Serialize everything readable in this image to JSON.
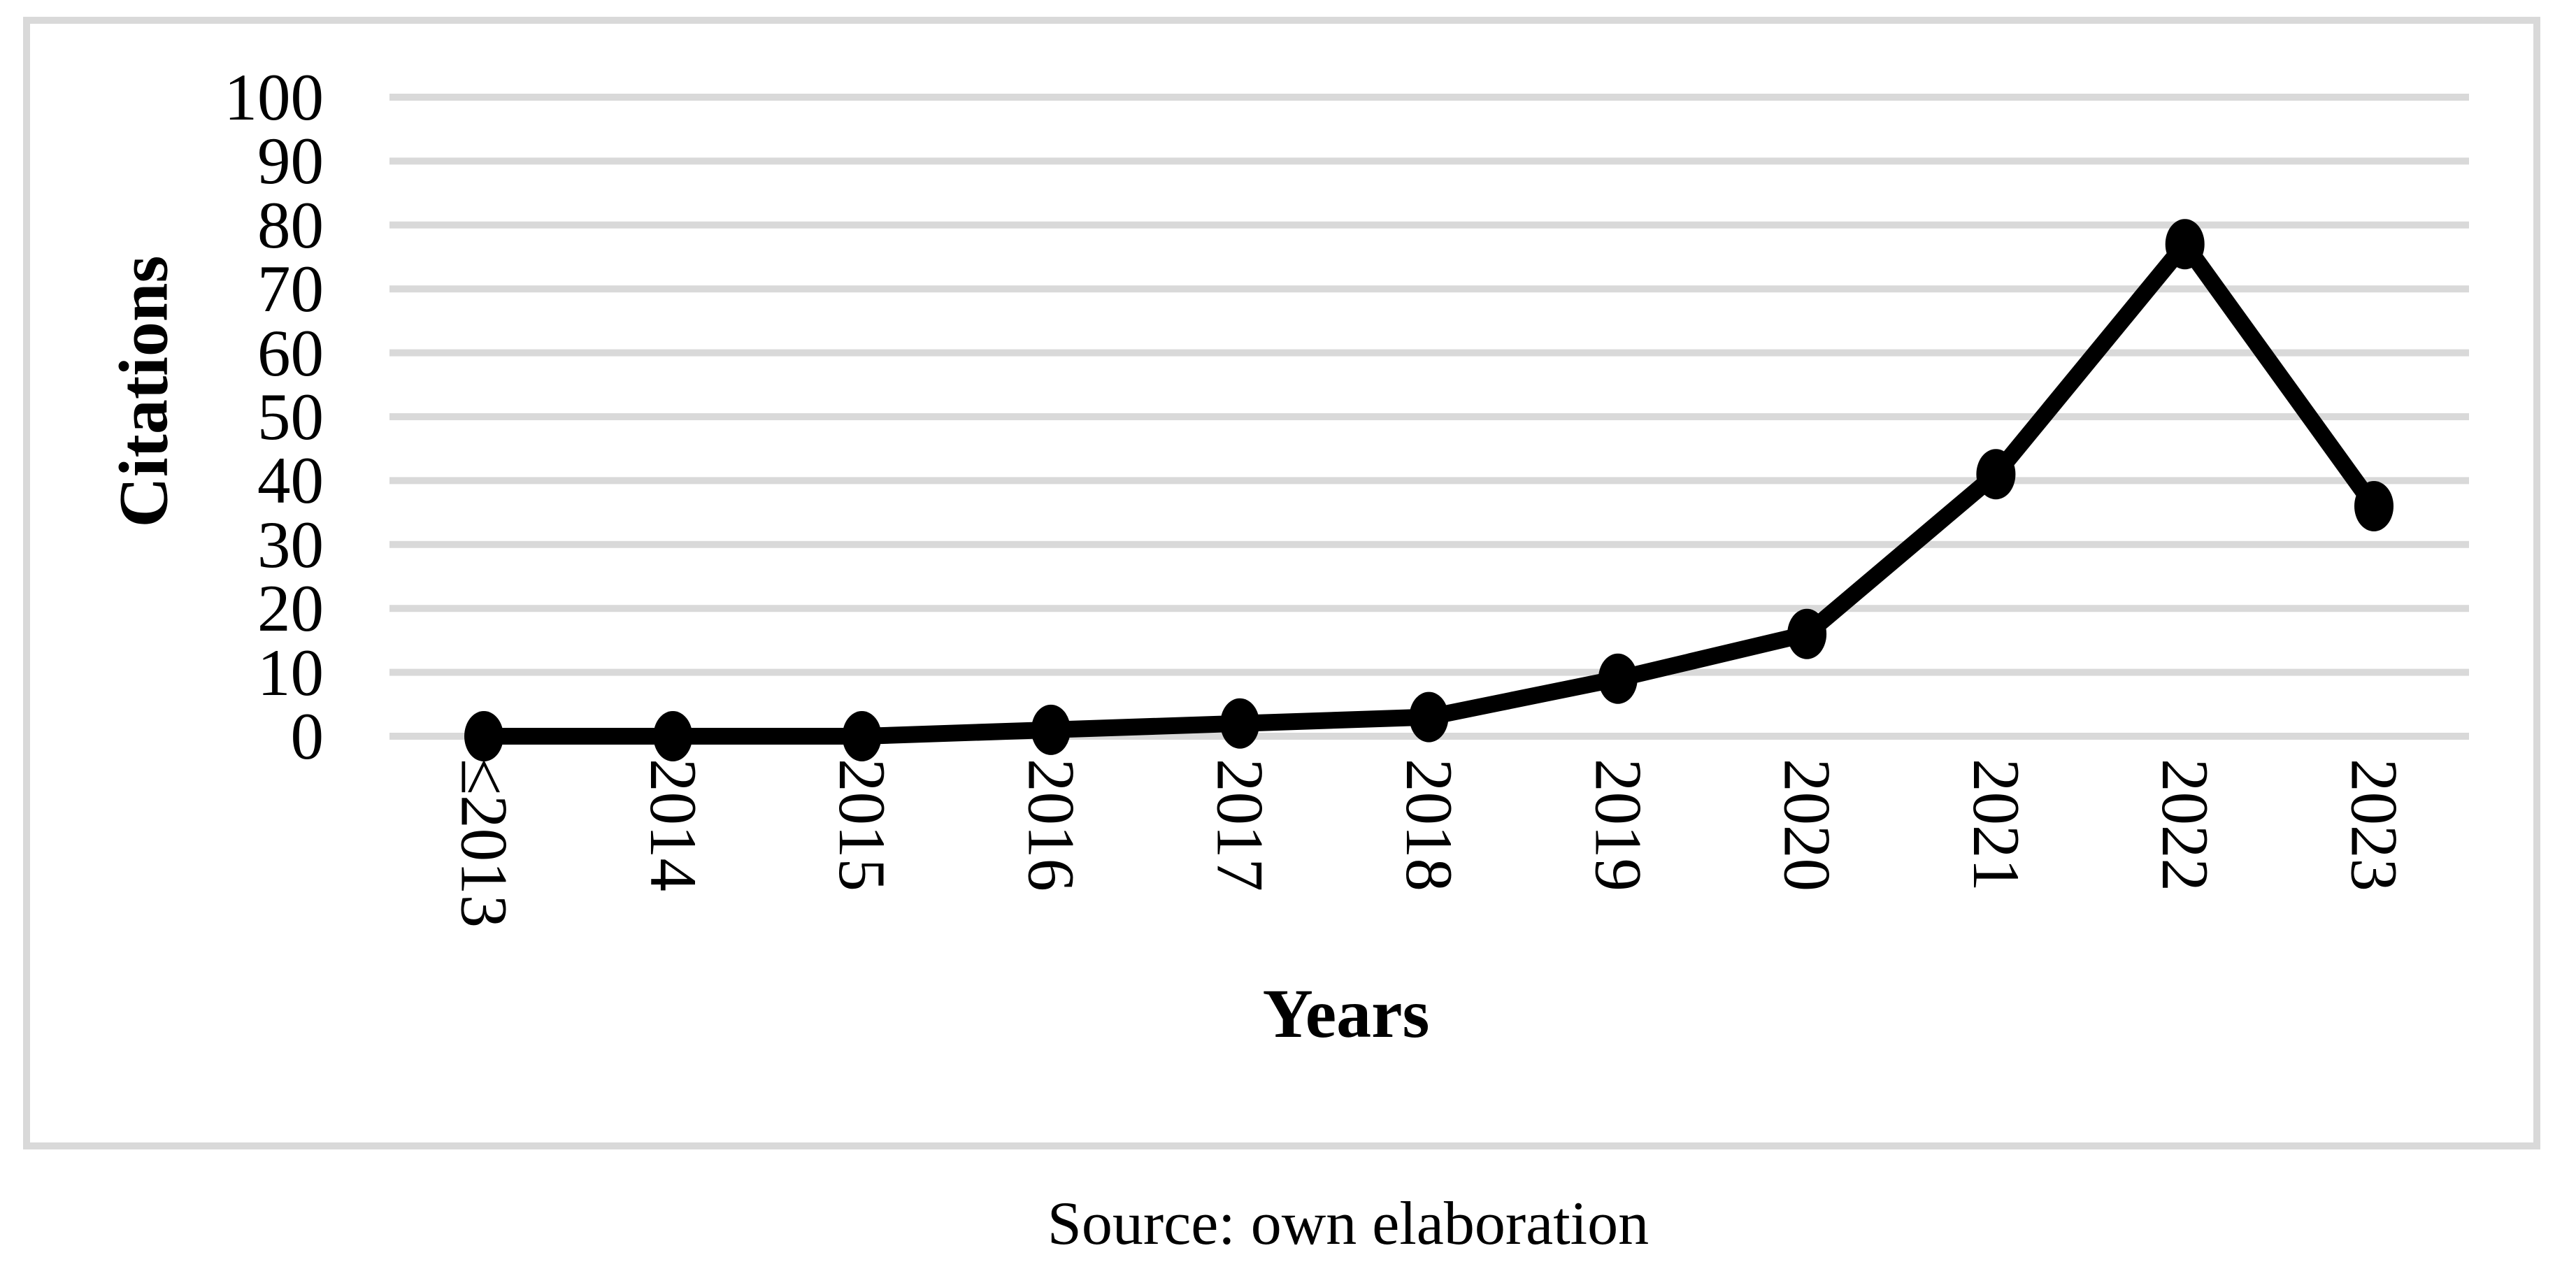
{
  "caption": "Source: own elaboration",
  "colors": {
    "line": "#000000",
    "marker": "#000000",
    "gridline": "#d9d9d9",
    "frame_border": "#d9d9d9",
    "background": "#ffffff",
    "text": "#000000"
  },
  "chart_data": {
    "type": "line",
    "title": "",
    "xlabel": "Years",
    "ylabel": "Citations",
    "categories": [
      "≤2013",
      "2014",
      "2015",
      "2016",
      "2017",
      "2018",
      "2019",
      "2020",
      "2021",
      "2022",
      "2023"
    ],
    "values": [
      0,
      0,
      0,
      1,
      2,
      3,
      9,
      16,
      41,
      77,
      36
    ],
    "yticks": [
      0,
      10,
      20,
      30,
      40,
      50,
      60,
      70,
      80,
      90,
      100
    ],
    "ylim": [
      0,
      100
    ],
    "grid": "horizontal-only",
    "legend": "none",
    "marker_style": "filled-circle",
    "x_tick_rotation": "vertical"
  }
}
